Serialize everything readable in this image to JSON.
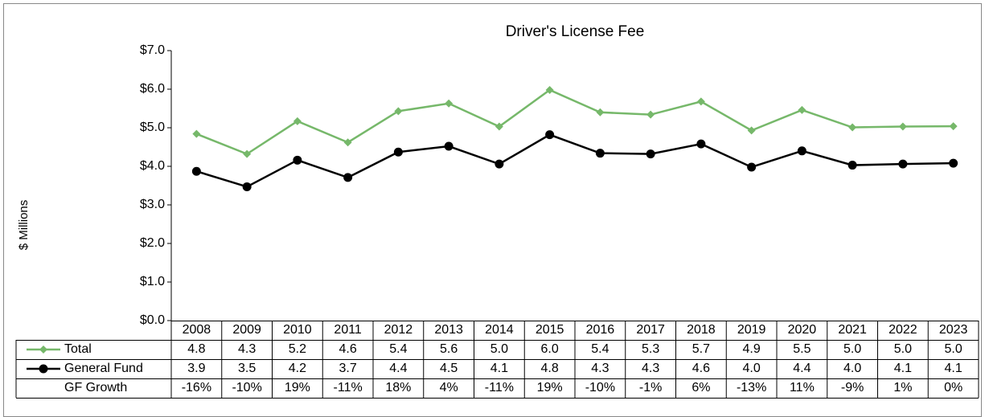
{
  "chart_data": {
    "type": "line",
    "title": "Driver's License Fee",
    "y_label": "$ Millions",
    "categories": [
      "2008",
      "2009",
      "2010",
      "2011",
      "2012",
      "2013",
      "2014",
      "2015",
      "2016",
      "2017",
      "2018",
      "2019",
      "2020",
      "2021",
      "2022",
      "2023"
    ],
    "series": [
      {
        "name": "Total",
        "color": "#76b86a",
        "marker": "diamond",
        "values": [
          4.84,
          4.32,
          5.17,
          4.62,
          5.43,
          5.63,
          5.03,
          5.98,
          5.4,
          5.34,
          5.68,
          4.93,
          5.46,
          5.01,
          5.03,
          5.04
        ],
        "value_labels": [
          "4.8",
          "4.3",
          "5.2",
          "4.6",
          "5.4",
          "5.6",
          "5.0",
          "6.0",
          "5.4",
          "5.3",
          "5.7",
          "4.9",
          "5.5",
          "5.0",
          "5.0",
          "5.0"
        ]
      },
      {
        "name": "General Fund",
        "color": "#000000",
        "marker": "circle",
        "values": [
          3.87,
          3.47,
          4.16,
          3.71,
          4.37,
          4.52,
          4.06,
          4.82,
          4.34,
          4.32,
          4.58,
          3.98,
          4.4,
          4.03,
          4.06,
          4.08
        ],
        "value_labels": [
          "3.9",
          "3.5",
          "4.2",
          "3.7",
          "4.4",
          "4.5",
          "4.1",
          "4.8",
          "4.3",
          "4.3",
          "4.6",
          "4.0",
          "4.4",
          "4.0",
          "4.1",
          "4.1"
        ]
      }
    ],
    "table_rows": [
      {
        "name": "GF Growth",
        "values": [
          -16,
          -10,
          19,
          -11,
          18,
          4,
          -11,
          19,
          -10,
          -1,
          6,
          -13,
          11,
          -9,
          1,
          0
        ],
        "value_labels": [
          "-16%",
          "-10%",
          "19%",
          "-11%",
          "18%",
          "4%",
          "-11%",
          "19%",
          "-10%",
          "-1%",
          "6%",
          "-13%",
          "11%",
          "-9%",
          "1%",
          "0%"
        ]
      }
    ],
    "ylim": [
      0,
      7
    ],
    "yticks": [
      {
        "value": 0,
        "label": "$0.0"
      },
      {
        "value": 1,
        "label": "$1.0"
      },
      {
        "value": 2,
        "label": "$2.0"
      },
      {
        "value": 3,
        "label": "$3.0"
      },
      {
        "value": 4,
        "label": "$4.0"
      },
      {
        "value": 5,
        "label": "$5.0"
      },
      {
        "value": 6,
        "label": "$6.0"
      },
      {
        "value": 7,
        "label": "$7.0"
      }
    ],
    "grid": false
  }
}
